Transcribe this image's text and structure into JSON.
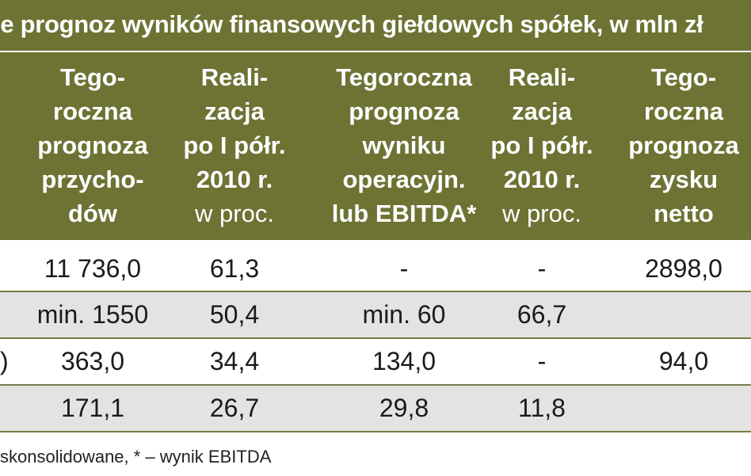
{
  "title": "ie prognoz wyników finansowych giełdowych spółek, w mln zł",
  "columns": [
    {
      "lines": [
        "Tego-",
        "roczna",
        "prognoza",
        "przycho-",
        "dów"
      ]
    },
    {
      "lines": [
        "Reali-",
        "zacja",
        "po I półr.",
        "2010 r."
      ],
      "sub": "w proc."
    },
    {
      "lines": [
        "Tegoroczna",
        "prognoza",
        "wyniku",
        "operacyjn.",
        "lub EBITDA*"
      ]
    },
    {
      "lines": [
        "Reali-",
        "zacja",
        "po I półr.",
        "2010 r."
      ],
      "sub": "w proc."
    },
    {
      "lines": [
        "Tego-",
        "roczna",
        "prognoza",
        "zysku",
        "netto"
      ]
    }
  ],
  "rows": [
    {
      "label": "",
      "values": [
        "11 736,0",
        "61,3",
        "-",
        "-",
        "2898,0"
      ]
    },
    {
      "label": "",
      "values": [
        "min. 1550",
        "50,4",
        "min. 60",
        "66,7",
        ""
      ]
    },
    {
      "label": ")",
      "values": [
        "363,0",
        "34,4",
        "134,0",
        "-",
        "94,0"
      ]
    },
    {
      "label": "",
      "values": [
        "171,1",
        "26,7",
        "29,8",
        "11,8",
        ""
      ]
    }
  ],
  "footnote": "skonsolidowane, * – wynik EBITDA",
  "colors": {
    "header_bg": "#6d7333",
    "alt_row_bg": "#e3e3e3",
    "header_text": "#ffffff"
  }
}
